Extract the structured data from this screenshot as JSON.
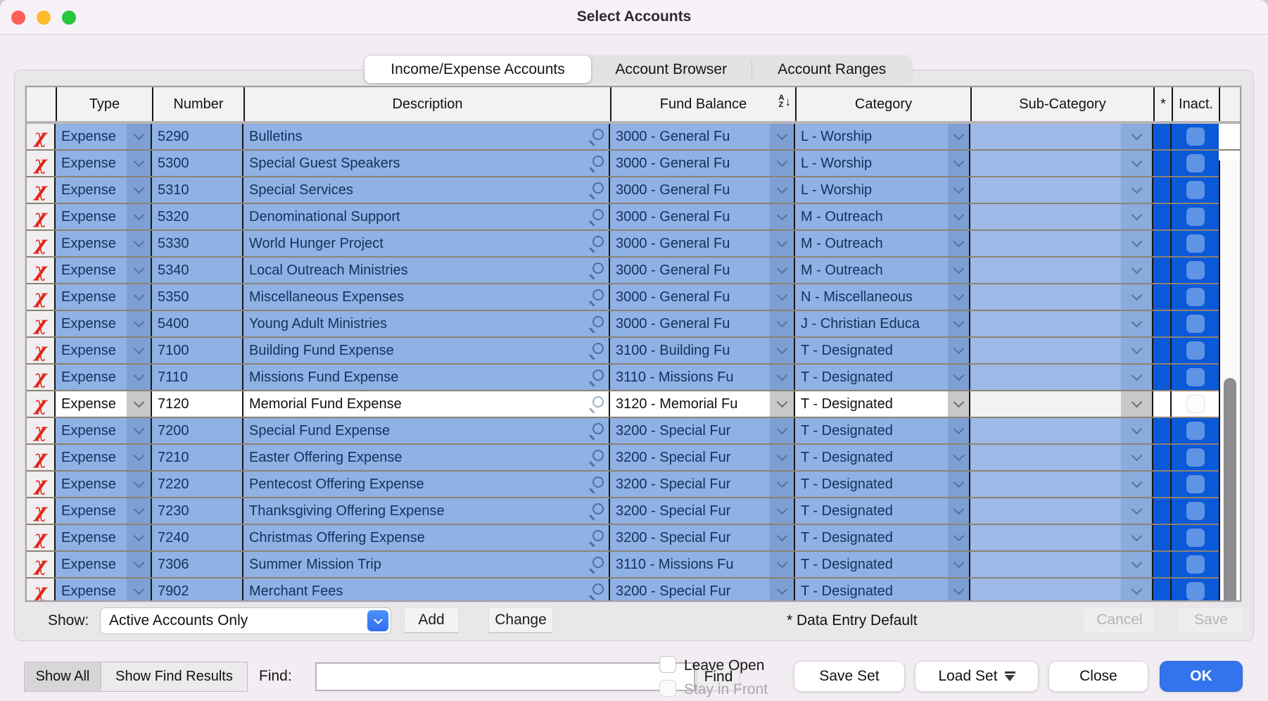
{
  "window": {
    "title": "Select Accounts"
  },
  "tabs": [
    {
      "label": "Income/Expense Accounts",
      "active": true
    },
    {
      "label": "Account Browser",
      "active": false
    },
    {
      "label": "Account Ranges",
      "active": false
    }
  ],
  "table": {
    "headers": {
      "type": "Type",
      "number": "Number",
      "description": "Description",
      "fund_balance": "Fund Balance",
      "category": "Category",
      "sub_category": "Sub-Category",
      "star": "*",
      "inactive": "Inact."
    },
    "sort_icon": {
      "top": "A",
      "bottom": "Z",
      "arrow": "↓"
    },
    "delete_glyph": "χ",
    "rows": [
      {
        "type": "Expense",
        "number": "5290",
        "description": "Bulletins",
        "fund": "3000 - General Fu",
        "category": "L - Worship",
        "sub_category": "",
        "selected": true
      },
      {
        "type": "Expense",
        "number": "5300",
        "description": "Special Guest Speakers",
        "fund": "3000 - General Fu",
        "category": "L - Worship",
        "sub_category": "",
        "selected": true
      },
      {
        "type": "Expense",
        "number": "5310",
        "description": "Special Services",
        "fund": "3000 - General Fu",
        "category": "L - Worship",
        "sub_category": "",
        "selected": true
      },
      {
        "type": "Expense",
        "number": "5320",
        "description": "Denominational Support",
        "fund": "3000 - General Fu",
        "category": "M - Outreach",
        "sub_category": "",
        "selected": true
      },
      {
        "type": "Expense",
        "number": "5330",
        "description": "World Hunger Project",
        "fund": "3000 - General Fu",
        "category": "M - Outreach",
        "sub_category": "",
        "selected": true
      },
      {
        "type": "Expense",
        "number": "5340",
        "description": "Local Outreach Ministries",
        "fund": "3000 - General Fu",
        "category": "M - Outreach",
        "sub_category": "",
        "selected": true
      },
      {
        "type": "Expense",
        "number": "5350",
        "description": "Miscellaneous Expenses",
        "fund": "3000 - General Fu",
        "category": "N - Miscellaneous",
        "sub_category": "",
        "selected": true
      },
      {
        "type": "Expense",
        "number": "5400",
        "description": "Young Adult Ministries",
        "fund": "3000 - General Fu",
        "category": "J - Christian Educa",
        "sub_category": "",
        "selected": true
      },
      {
        "type": "Expense",
        "number": "7100",
        "description": "Building Fund Expense",
        "fund": "3100 - Building Fu",
        "category": "T - Designated",
        "sub_category": "",
        "selected": true
      },
      {
        "type": "Expense",
        "number": "7110",
        "description": "Missions Fund Expense",
        "fund": "3110 - Missions Fu",
        "category": "T - Designated",
        "sub_category": "",
        "selected": true
      },
      {
        "type": "Expense",
        "number": "7120",
        "description": "Memorial Fund Expense",
        "fund": "3120 - Memorial Fu",
        "category": "T - Designated",
        "sub_category": "",
        "selected": false
      },
      {
        "type": "Expense",
        "number": "7200",
        "description": "Special Fund Expense",
        "fund": "3200 - Special Fur",
        "category": "T - Designated",
        "sub_category": "",
        "selected": true
      },
      {
        "type": "Expense",
        "number": "7210",
        "description": "Easter Offering Expense",
        "fund": "3200 - Special Fur",
        "category": "T - Designated",
        "sub_category": "",
        "selected": true
      },
      {
        "type": "Expense",
        "number": "7220",
        "description": "Pentecost Offering Expense",
        "fund": "3200 - Special Fur",
        "category": "T - Designated",
        "sub_category": "",
        "selected": true
      },
      {
        "type": "Expense",
        "number": "7230",
        "description": "Thanksgiving Offering Expense",
        "fund": "3200 - Special Fur",
        "category": "T - Designated",
        "sub_category": "",
        "selected": true
      },
      {
        "type": "Expense",
        "number": "7240",
        "description": "Christmas Offering Expense",
        "fund": "3200 - Special Fur",
        "category": "T - Designated",
        "sub_category": "",
        "selected": true
      },
      {
        "type": "Expense",
        "number": "7306",
        "description": "Summer Mission Trip",
        "fund": "3110 - Missions Fu",
        "category": "T - Designated",
        "sub_category": "",
        "selected": true
      },
      {
        "type": "Expense",
        "number": "7902",
        "description": "Merchant Fees",
        "fund": "3200 - Special Fur",
        "category": "T - Designated",
        "sub_category": "",
        "selected": true
      }
    ]
  },
  "footer": {
    "show_label": "Show:",
    "show_value": "Active Accounts Only",
    "add_label": "Add",
    "change_label": "Change",
    "data_entry_default": "* Data Entry Default",
    "cancel_label": "Cancel",
    "save_label": "Save"
  },
  "bottom_bar": {
    "show_all": "Show All",
    "show_find_results": "Show Find Results",
    "find_label": "Find:",
    "find_value": "",
    "find_placeholder": "",
    "find_button": "Find",
    "leave_open": "Leave Open",
    "stay_in_front": "Stay in Front",
    "save_set": "Save Set",
    "load_set": "Load Set",
    "close": "Close",
    "ok": "OK"
  },
  "colors": {
    "selection_row_blue": "#8fb1e3",
    "selection_deep_blue": "#0a59d8",
    "checkbox_blue": "#5f93e3",
    "navy_text": "#14315f",
    "delete_red": "#e1281a",
    "ok_button_blue": "#3374ec",
    "popup_chevron_blue": "#2f6ef0",
    "traffic_red": "#fe5f57",
    "traffic_yellow": "#febb2e",
    "traffic_green": "#27c73f"
  }
}
